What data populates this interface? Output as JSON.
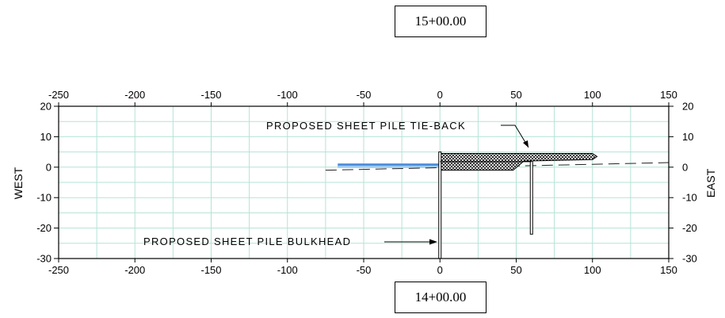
{
  "stations": {
    "top": "15+00.00",
    "bottom": "14+00.00"
  },
  "sides": {
    "left": "WEST",
    "right": "EAST"
  },
  "callouts": {
    "tieback": "PROPOSED SHEET PILE TIE-BACK",
    "bulkhead": "PROPOSED SHEET PILE BULKHEAD"
  },
  "chart_data": {
    "type": "cross-section",
    "xlim": [
      -250,
      150
    ],
    "ylim": [
      -30,
      20
    ],
    "x_ticks": [
      -250,
      -200,
      -150,
      -100,
      -50,
      0,
      50,
      100,
      150
    ],
    "y_ticks": [
      20,
      10,
      0,
      -10,
      -20,
      -30
    ],
    "x_tick_labels": [
      "-250",
      "-200",
      "-150",
      "-100",
      "-50",
      "0",
      "50",
      "100",
      "150"
    ],
    "y_tick_labels": [
      "20",
      "10",
      "0",
      "-10",
      "-20",
      "-30"
    ],
    "grid": true,
    "x_minor_gridlines": [
      -225,
      -175,
      -125,
      -75,
      -25,
      25,
      75,
      125
    ],
    "y_minor_gridlines": [
      15,
      5,
      -5,
      -15,
      -25
    ],
    "features": {
      "water": {
        "x": [
          -67,
          0
        ],
        "y": [
          0,
          1.2
        ]
      },
      "existing_ground": {
        "x": [
          -75,
          150
        ],
        "y": [
          -1,
          1.5
        ],
        "style": "dashed"
      },
      "bulkhead": {
        "x": 0,
        "y": [
          -30,
          5
        ]
      },
      "tieback_pile": {
        "x": 60,
        "y": [
          -22,
          2
        ]
      },
      "fill": [
        [
          0,
          4.5
        ],
        [
          100,
          4.5
        ],
        [
          103,
          3.5
        ],
        [
          100,
          2.5
        ],
        [
          55,
          2.0
        ],
        [
          48,
          -1.0
        ],
        [
          0,
          -1.0
        ]
      ]
    },
    "colors": {
      "grid": "#b5e3d6",
      "axis": "#000000",
      "water": "#4a89d8",
      "water_light": "#9ccaf0"
    }
  }
}
